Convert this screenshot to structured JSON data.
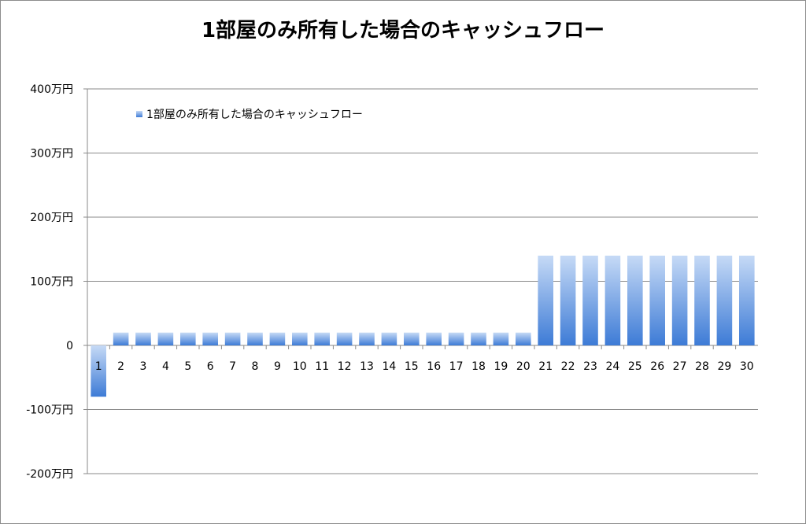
{
  "chart_data": {
    "type": "bar",
    "title": "1部屋のみ所有した場合のキャッシュフロー",
    "xlabel": "",
    "ylabel": "",
    "categories": [
      "1",
      "2",
      "3",
      "4",
      "5",
      "6",
      "7",
      "8",
      "9",
      "10",
      "11",
      "12",
      "13",
      "14",
      "15",
      "16",
      "17",
      "18",
      "19",
      "20",
      "21",
      "22",
      "23",
      "24",
      "25",
      "26",
      "27",
      "28",
      "29",
      "30"
    ],
    "series": [
      {
        "name": "1部屋のみ所有した場合のキャッシュフロー",
        "values": [
          -80,
          20,
          20,
          20,
          20,
          20,
          20,
          20,
          20,
          20,
          20,
          20,
          20,
          20,
          20,
          20,
          20,
          20,
          20,
          20,
          140,
          140,
          140,
          140,
          140,
          140,
          140,
          140,
          140,
          140
        ],
        "color": "#4a84d8"
      }
    ],
    "ylim": [
      -200,
      400
    ],
    "yticks": [
      {
        "value": 400,
        "label": "400万円"
      },
      {
        "value": 300,
        "label": "300万円"
      },
      {
        "value": 200,
        "label": "200万円"
      },
      {
        "value": 100,
        "label": "100万円"
      },
      {
        "value": 0,
        "label": "0"
      },
      {
        "value": -100,
        "label": "-100万円"
      },
      {
        "value": -200,
        "label": "-200万円"
      }
    ],
    "grid": true,
    "legend_position": "top-left"
  }
}
